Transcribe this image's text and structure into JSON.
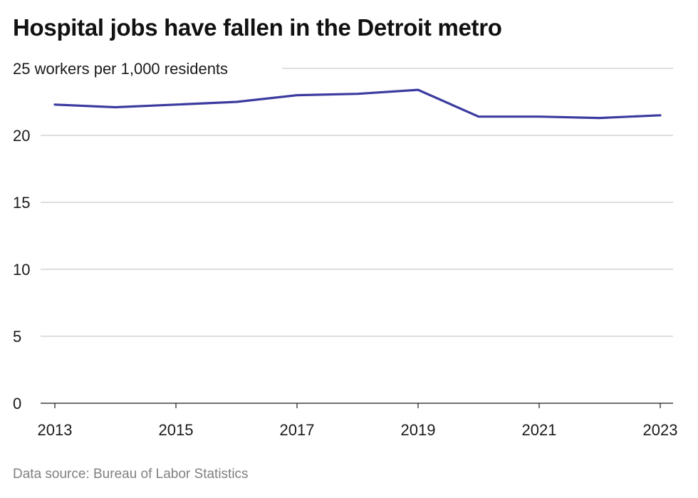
{
  "title": "Hospital jobs have fallen in the Detroit metro",
  "source": "Data source: Bureau of Labor Statistics",
  "colors": {
    "line": "#3b3ba0",
    "grid": "#bdbdbd",
    "axis": "#1a1a1a"
  },
  "chart_data": {
    "type": "line",
    "title": "Hospital jobs have fallen in the Detroit metro",
    "unit_label": "workers per 1,000 residents",
    "xlabel": "",
    "ylabel": "",
    "x": [
      2013,
      2014,
      2015,
      2016,
      2017,
      2018,
      2019,
      2020,
      2021,
      2022,
      2023
    ],
    "series": [
      {
        "values": [
          22.3,
          22.1,
          22.3,
          22.5,
          23.0,
          23.1,
          23.4,
          21.4,
          21.4,
          21.3,
          21.5
        ]
      }
    ],
    "ylim": [
      0,
      25
    ],
    "yticks": [
      0,
      5,
      10,
      15,
      20,
      25
    ],
    "xticks": [
      2013,
      2015,
      2017,
      2019,
      2021,
      2023
    ],
    "grid": true
  }
}
